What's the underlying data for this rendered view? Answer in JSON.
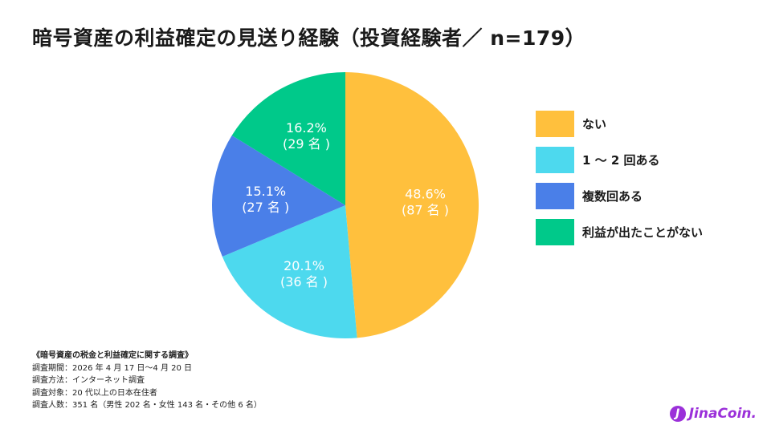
{
  "chart_data": {
    "type": "pie",
    "title": "暗号資産の利益確定の見送り経験（投資経験者／ n=179）",
    "slices": [
      {
        "label": "ない",
        "percent": 48.6,
        "count": 87,
        "pct_text": "48.6%",
        "count_text": "(87 名 )",
        "color": "#ffc03d"
      },
      {
        "label": "1 ～ 2 回ある",
        "percent": 20.1,
        "count": 36,
        "pct_text": "20.1%",
        "count_text": "(36 名 )",
        "color": "#4dd9ee"
      },
      {
        "label": "複数回ある",
        "percent": 15.1,
        "count": 27,
        "pct_text": "15.1%",
        "count_text": "(27 名 )",
        "color": "#4a7fe8"
      },
      {
        "label": "利益が出たことがない",
        "percent": 16.2,
        "count": 29,
        "pct_text": "16.2%",
        "count_text": "(29 名 )",
        "color": "#00c98a"
      }
    ],
    "legend_position": "right"
  },
  "notes": {
    "title": "《暗号資産の税金と利益確定に関する調査》",
    "lines": [
      "調査期間：2026 年 4 月 17 日〜4 月 20 日",
      "調査方法：インターネット調査",
      "調査対象：20 代以上の日本在住者",
      "調査人数：351 名（男性 202 名・女性 143 名・その他 6 名）"
    ]
  },
  "brand": {
    "logo_text": "JinaCoin.",
    "logo_mark": "J",
    "color": "#9b30d9"
  }
}
